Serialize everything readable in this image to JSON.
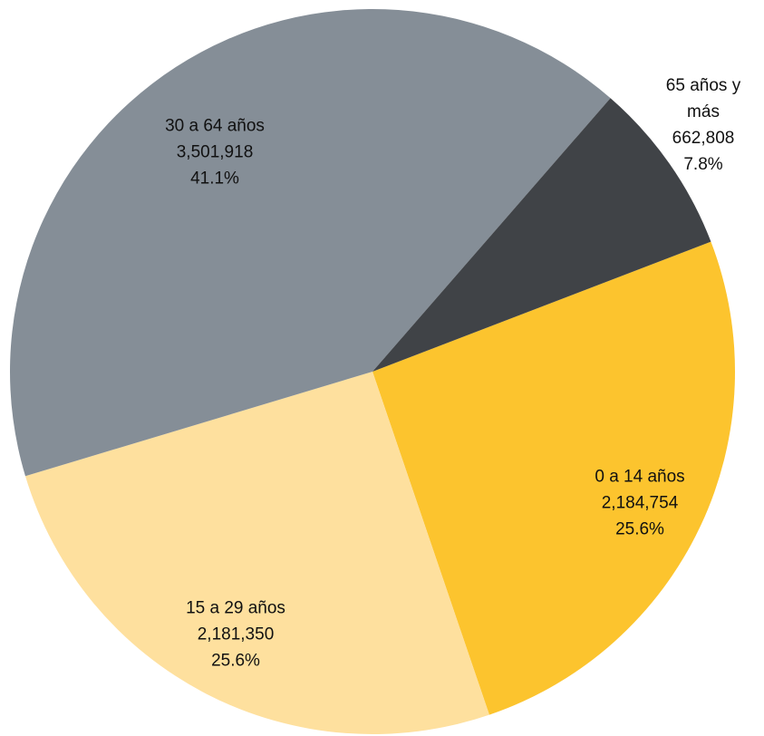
{
  "chart_data": {
    "type": "pie",
    "categories": [
      "0 a 14 años",
      "15 a 29 años",
      "30 a 64 años",
      "65 años y más"
    ],
    "values": [
      2184754,
      2181350,
      3501918,
      662808
    ],
    "value_labels": [
      "2,184,754",
      "2,181,350",
      "3,501,918",
      "662,808"
    ],
    "percentages": [
      25.6,
      25.6,
      41.1,
      7.8
    ],
    "percentage_labels": [
      "25.6%",
      "25.6%",
      "41.1%",
      "7.8%"
    ],
    "colors": [
      "#fcc42e",
      "#fee09e",
      "#858e97",
      "#404347"
    ]
  }
}
